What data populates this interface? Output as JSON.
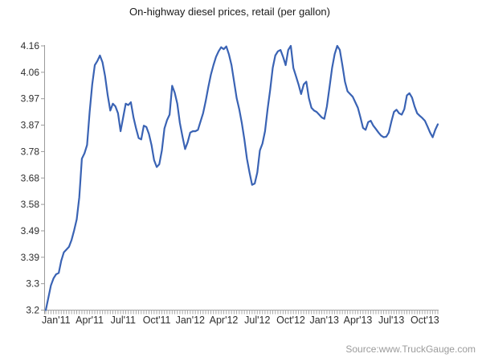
{
  "title": "On-highway diesel prices, retail (per gallon)",
  "source": "Source:www.TruckGauge.com",
  "chart_data": {
    "type": "line",
    "title": "On-highway diesel prices, retail (per gallon)",
    "frequency": "weekly",
    "x_tick_labels": [
      "Jan'11",
      "Apr'11",
      "Jul'11",
      "Oct'11",
      "Jan'12",
      "Apr'12",
      "Jul'12",
      "Oct'12",
      "Jan'13",
      "Apr'13",
      "Jul'13",
      "Oct'13"
    ],
    "x_tick_week_indices": [
      4,
      17,
      30,
      43,
      56,
      69,
      82,
      95,
      108,
      121,
      134,
      147
    ],
    "y_tick_labels": [
      "4.16",
      "4.06",
      "3.97",
      "3.87",
      "3.78",
      "3.68",
      "3.58",
      "3.49",
      "3.39",
      "3.3",
      "3.2"
    ],
    "ylim": [
      3.2,
      4.16
    ],
    "line_color": "#3a63b4",
    "axis_color": "#9a9a9a",
    "tick_color": "#a6a6a6",
    "label_color": "#2e2e2e",
    "grid": "off",
    "legend": "none",
    "values": [
      3.2,
      3.245,
      3.29,
      3.315,
      3.33,
      3.335,
      3.38,
      3.41,
      3.42,
      3.43,
      3.455,
      3.49,
      3.53,
      3.61,
      3.75,
      3.77,
      3.8,
      3.92,
      4.02,
      4.09,
      4.105,
      4.125,
      4.1,
      4.05,
      3.98,
      3.925,
      3.95,
      3.94,
      3.915,
      3.85,
      3.9,
      3.95,
      3.945,
      3.955,
      3.9,
      3.86,
      3.825,
      3.82,
      3.87,
      3.865,
      3.84,
      3.8,
      3.745,
      3.72,
      3.73,
      3.78,
      3.86,
      3.89,
      3.91,
      4.015,
      3.99,
      3.95,
      3.88,
      3.83,
      3.785,
      3.81,
      3.845,
      3.85,
      3.85,
      3.855,
      3.885,
      3.915,
      3.96,
      4.01,
      4.055,
      4.09,
      4.12,
      4.14,
      4.155,
      4.148,
      4.158,
      4.13,
      4.09,
      4.03,
      3.97,
      3.93,
      3.88,
      3.82,
      3.75,
      3.7,
      3.655,
      3.66,
      3.7,
      3.78,
      3.805,
      3.85,
      3.93,
      4.0,
      4.08,
      4.125,
      4.14,
      4.145,
      4.12,
      4.09,
      4.145,
      4.16,
      4.08,
      4.05,
      4.02,
      3.985,
      4.02,
      4.03,
      3.97,
      3.935,
      3.925,
      3.92,
      3.91,
      3.9,
      3.895,
      3.94,
      4.01,
      4.08,
      4.13,
      4.16,
      4.145,
      4.09,
      4.03,
      3.995,
      3.985,
      3.975,
      3.955,
      3.935,
      3.9,
      3.862,
      3.855,
      3.883,
      3.888,
      3.87,
      3.858,
      3.845,
      3.834,
      3.828,
      3.83,
      3.845,
      3.885,
      3.92,
      3.928,
      3.915,
      3.91,
      3.93,
      3.98,
      3.988,
      3.972,
      3.94,
      3.915,
      3.906,
      3.898,
      3.888,
      3.867,
      3.845,
      3.828,
      3.855,
      3.875
    ]
  }
}
